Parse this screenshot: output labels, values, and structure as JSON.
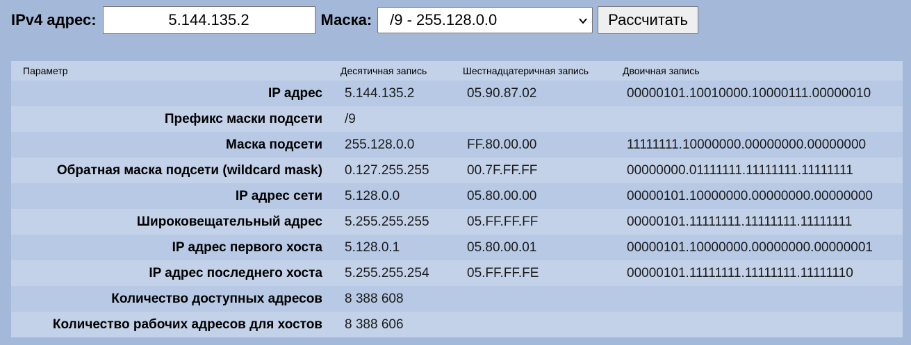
{
  "form": {
    "ip_label": "IPv4 адрес:",
    "ip_value": "5.144.135.2",
    "mask_label": "Маска:",
    "mask_selected": "/9 - 255.128.0.0",
    "calc_button": "Рассчитать",
    "chevron_icon": "chevron-down-icon"
  },
  "table": {
    "headers": [
      "Параметр",
      "Десятичная запись",
      "Шестнадцатеричная запись",
      "Двоичная запись"
    ],
    "rows": [
      {
        "param": "IP адрес",
        "dec": "5.144.135.2",
        "hex": "05.90.87.02",
        "bin": "00000101.10010000.10000111.00000010"
      },
      {
        "param": "Префикс маски подсети",
        "dec": "/9",
        "hex": "",
        "bin": ""
      },
      {
        "param": "Маска подсети",
        "dec": "255.128.0.0",
        "hex": "FF.80.00.00",
        "bin": "11111111.10000000.00000000.00000000"
      },
      {
        "param": "Обратная маска подсети (wildcard mask)",
        "dec": "0.127.255.255",
        "hex": "00.7F.FF.FF",
        "bin": "00000000.01111111.11111111.11111111"
      },
      {
        "param": "IP адрес сети",
        "dec": "5.128.0.0",
        "hex": "05.80.00.00",
        "bin": "00000101.10000000.00000000.00000000"
      },
      {
        "param": "Широковещательный адрес",
        "dec": "5.255.255.255",
        "hex": "05.FF.FF.FF",
        "bin": "00000101.11111111.11111111.11111111"
      },
      {
        "param": "IP адрес первого хоста",
        "dec": "5.128.0.1",
        "hex": "05.80.00.01",
        "bin": "00000101.10000000.00000000.00000001"
      },
      {
        "param": "IP адрес последнего хоста",
        "dec": "5.255.255.254",
        "hex": "05.FF.FF.FE",
        "bin": "00000101.11111111.11111111.11111110"
      },
      {
        "param": "Количество доступных адресов",
        "dec": "8 388 608",
        "hex": "",
        "bin": ""
      },
      {
        "param": "Количество рабочих адресов для хостов",
        "dec": "8 388 606",
        "hex": "",
        "bin": ""
      }
    ]
  },
  "colors": {
    "page_bg": "#a4b9d9",
    "row_dark": "#b7c9e4",
    "row_light": "#c3d2e9"
  }
}
